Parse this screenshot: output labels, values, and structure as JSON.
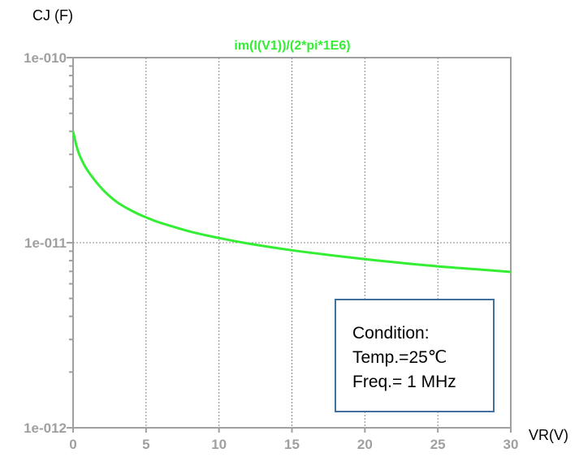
{
  "chart_data": {
    "type": "line",
    "title": "im(I(V1))/(2*pi*1E6)",
    "ylabel": "CJ (F)",
    "xlabel": "VR(V)",
    "x_scale": "linear",
    "y_scale": "log",
    "xlim": [
      0,
      30
    ],
    "ylim": [
      1e-12,
      1e-10
    ],
    "x_ticks": [
      0,
      5,
      10,
      15,
      20,
      25,
      30
    ],
    "x_tick_labels": [
      "0",
      "5",
      "10",
      "15",
      "20",
      "25",
      "30"
    ],
    "y_ticks": [
      1e-12,
      1e-11,
      1e-10
    ],
    "y_tick_labels": [
      "1e-012",
      "1e-011",
      "1e-010"
    ],
    "grid": true,
    "series": [
      {
        "color": "#33ee33",
        "x": [
          0,
          0.25,
          0.5,
          1,
          2,
          3,
          4,
          5,
          6,
          8,
          10,
          12,
          15,
          18,
          20,
          22,
          25,
          28,
          30
        ],
        "y": [
          4e-11,
          3.3e-11,
          2.9e-11,
          2.45e-11,
          1.95e-11,
          1.66e-11,
          1.49e-11,
          1.37e-11,
          1.28e-11,
          1.15e-11,
          1.06e-11,
          9.9e-12,
          9.1e-12,
          8.5e-12,
          8.15e-12,
          7.85e-12,
          7.45e-12,
          7.15e-12,
          6.95e-12
        ]
      }
    ],
    "annotation": [
      "Condition:",
      "Temp.=25℃",
      "Freq.= 1 MHz"
    ]
  }
}
